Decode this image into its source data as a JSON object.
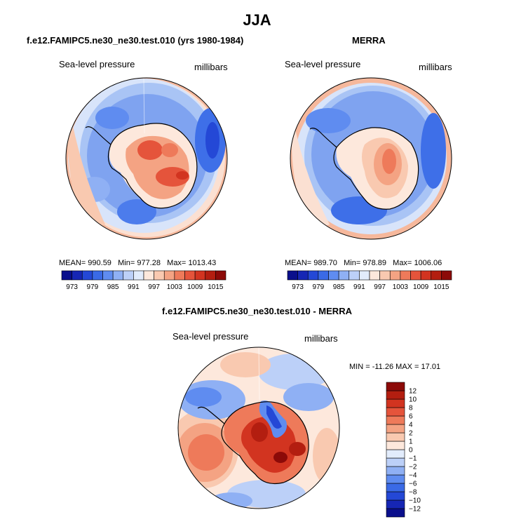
{
  "figure": {
    "title": "JJA",
    "panels": [
      {
        "title": "f.e12.FAMIPC5.ne30_ne30.test.010 (yrs 1980-1984)",
        "variable": "Sea-level pressure",
        "units": "millibars",
        "stats": {
          "mean_label": "MEAN=",
          "mean": "990.59",
          "min_label": "Min=",
          "min": "977.28",
          "max_label": "Max=",
          "max": "1013.43"
        }
      },
      {
        "title": "MERRA",
        "variable": "Sea-level pressure",
        "units": "millibars",
        "stats": {
          "mean_label": "MEAN=",
          "mean": "989.70",
          "min_label": "Min=",
          "min": "978.89",
          "max_label": "Max=",
          "max": "1006.06"
        }
      },
      {
        "title": "f.e12.FAMIPC5.ne30_ne30.test.010 - MERRA",
        "variable": "Sea-level pressure",
        "units": "millibars",
        "stats": {
          "min_label": "MIN =",
          "min": "-11.26",
          "max_label": "MAX =",
          "max": "17.01"
        }
      }
    ]
  },
  "chart_data": [
    {
      "type": "heatmap",
      "projection": "south-polar-stereographic",
      "title": "f.e12.FAMIPC5.ne30_ne30.test.010 (yrs 1980-1984)",
      "variable": "Sea-level pressure",
      "units": "millibars",
      "mean": 990.59,
      "min": 977.28,
      "max": 1013.43,
      "colorbar_orientation": "horizontal",
      "levels": [
        973,
        976,
        979,
        982,
        985,
        988,
        991,
        994,
        997,
        1000,
        1003,
        1006,
        1009,
        1012,
        1015
      ],
      "colorbar_labels": [
        "973",
        "979",
        "985",
        "991",
        "997",
        "1003",
        "1009",
        "1015"
      ]
    },
    {
      "type": "heatmap",
      "projection": "south-polar-stereographic",
      "title": "MERRA",
      "variable": "Sea-level pressure",
      "units": "millibars",
      "mean": 989.7,
      "min": 978.89,
      "max": 1006.06,
      "colorbar_orientation": "horizontal",
      "levels": [
        973,
        976,
        979,
        982,
        985,
        988,
        991,
        994,
        997,
        1000,
        1003,
        1006,
        1009,
        1012,
        1015
      ],
      "colorbar_labels": [
        "973",
        "979",
        "985",
        "991",
        "997",
        "1003",
        "1009",
        "1015"
      ]
    },
    {
      "type": "heatmap",
      "projection": "south-polar-stereographic",
      "title": "f.e12.FAMIPC5.ne30_ne30.test.010 - MERRA",
      "variable": "Sea-level pressure",
      "units": "millibars",
      "min": -11.26,
      "max": 17.01,
      "colorbar_orientation": "vertical",
      "levels": [
        -12,
        -10,
        -8,
        -6,
        -4,
        -2,
        -1,
        0,
        1,
        2,
        4,
        6,
        8,
        10,
        12
      ],
      "colorbar_labels": [
        "-12",
        "-10",
        "-8",
        "-6",
        "-4",
        "-2",
        "-1",
        "0",
        "1",
        "2",
        "4",
        "6",
        "8",
        "10",
        "12"
      ]
    }
  ],
  "colors": {
    "scale": [
      "#0a0f8c",
      "#1626b4",
      "#2448d6",
      "#3a6ae6",
      "#5f8cf0",
      "#8fb0f4",
      "#bcd0f8",
      "#e2ecfc",
      "#fde8dc",
      "#f9c9b0",
      "#f4a383",
      "#ee7a5a",
      "#e5543b",
      "#d23420",
      "#b31e10",
      "#8c0a08"
    ],
    "coast": "#000000",
    "frame": "#000000"
  }
}
